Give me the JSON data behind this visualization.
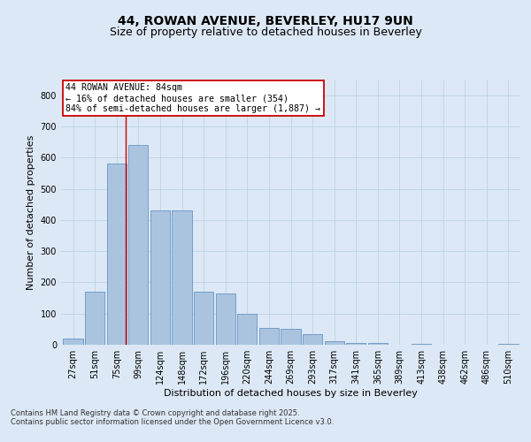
{
  "title1": "44, ROWAN AVENUE, BEVERLEY, HU17 9UN",
  "title2": "Size of property relative to detached houses in Beverley",
  "xlabel": "Distribution of detached houses by size in Beverley",
  "ylabel": "Number of detached properties",
  "categories": [
    "27sqm",
    "51sqm",
    "75sqm",
    "99sqm",
    "124sqm",
    "148sqm",
    "172sqm",
    "196sqm",
    "220sqm",
    "244sqm",
    "269sqm",
    "293sqm",
    "317sqm",
    "341sqm",
    "365sqm",
    "389sqm",
    "413sqm",
    "438sqm",
    "462sqm",
    "486sqm",
    "510sqm"
  ],
  "values": [
    20,
    170,
    580,
    640,
    430,
    430,
    170,
    165,
    100,
    55,
    50,
    35,
    12,
    7,
    7,
    0,
    3,
    0,
    0,
    0,
    3
  ],
  "bar_color": "#aac4e0",
  "bar_edge_color": "#5588bb",
  "vline_x_index": 2.42,
  "vline_color": "#cc0000",
  "annotation_text": "44 ROWAN AVENUE: 84sqm\n← 16% of detached houses are smaller (354)\n84% of semi-detached houses are larger (1,887) →",
  "annotation_box_color": "#ffffff",
  "annotation_box_edge": "#cc0000",
  "bg_color": "#dce8f5",
  "plot_bg_color": "#dce8f5",
  "footer1": "Contains HM Land Registry data © Crown copyright and database right 2025.",
  "footer2": "Contains public sector information licensed under the Open Government Licence v3.0.",
  "ylim": [
    0,
    850
  ],
  "yticks": [
    0,
    100,
    200,
    300,
    400,
    500,
    600,
    700,
    800
  ],
  "title_fontsize": 10,
  "subtitle_fontsize": 9,
  "label_fontsize": 8,
  "tick_fontsize": 7,
  "footer_fontsize": 6
}
